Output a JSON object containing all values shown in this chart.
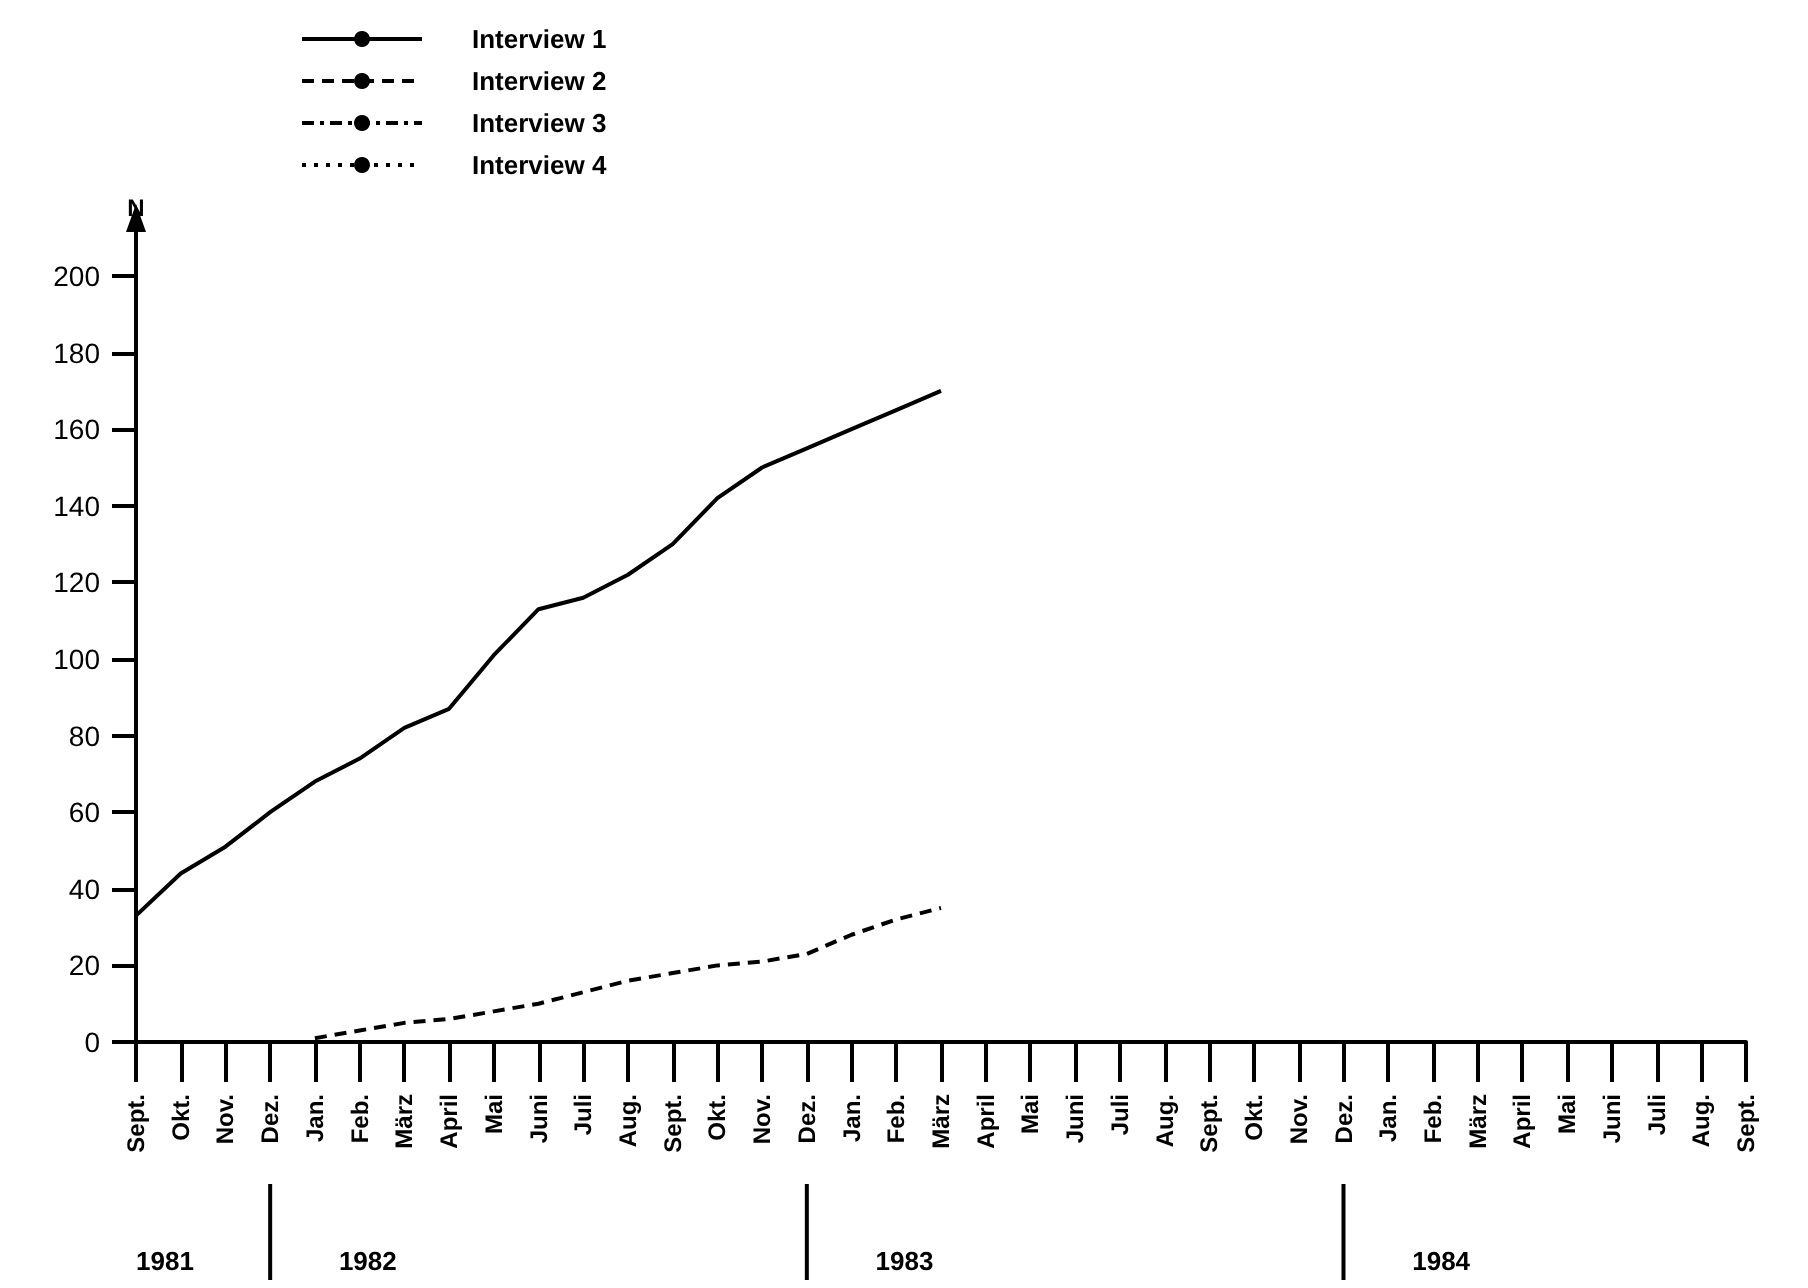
{
  "chart_data": {
    "type": "line",
    "ylabel": "N",
    "categories": [
      "Sept.",
      "Okt.",
      "Nov.",
      "Dez.",
      "Jan.",
      "Feb.",
      "März",
      "April",
      "Mai",
      "Juni",
      "Juli",
      "Aug.",
      "Sept.",
      "Okt.",
      "Nov.",
      "Dez.",
      "Jan.",
      "Feb.",
      "März",
      "April",
      "Mai",
      "Juni",
      "Juli",
      "Aug.",
      "Sept.",
      "Okt.",
      "Nov.",
      "Dez.",
      "Jan.",
      "Feb.",
      "März",
      "April",
      "Mai",
      "Juni",
      "Juli",
      "Aug.",
      "Sept."
    ],
    "series": [
      {
        "name": "Interview 1",
        "color": "#000000",
        "line_style": "solid",
        "values": [
          33,
          44,
          51,
          60,
          68,
          74,
          82,
          87,
          101,
          113,
          116,
          122,
          130,
          142,
          150,
          155,
          160,
          165,
          170,
          null,
          null,
          null,
          null,
          null,
          null,
          null,
          null,
          null,
          null,
          null,
          null,
          null,
          null,
          null,
          null,
          null,
          null
        ]
      },
      {
        "name": "Interview 2",
        "color": "#000000",
        "line_style": "dashed",
        "values": [
          null,
          null,
          null,
          null,
          1,
          3,
          5,
          6,
          8,
          10,
          13,
          16,
          18,
          20,
          21,
          23,
          28,
          32,
          35,
          null,
          null,
          null,
          null,
          null,
          null,
          null,
          null,
          null,
          null,
          null,
          null,
          null,
          null,
          null,
          null,
          null,
          null
        ]
      },
      {
        "name": "Interview 3",
        "color": "#000000",
        "line_style": "dashdot",
        "values": [
          null,
          null,
          null,
          null,
          null,
          null,
          null,
          null,
          null,
          null,
          null,
          null,
          null,
          null,
          null,
          null,
          null,
          null,
          null,
          null,
          null,
          null,
          null,
          null,
          null,
          null,
          null,
          null,
          null,
          null,
          null,
          null,
          null,
          null,
          null,
          null,
          null
        ]
      },
      {
        "name": "Interview 4",
        "color": "#000000",
        "line_style": "dotted",
        "values": [
          null,
          null,
          null,
          null,
          null,
          null,
          null,
          null,
          null,
          null,
          null,
          null,
          null,
          null,
          null,
          null,
          null,
          null,
          null,
          null,
          null,
          null,
          null,
          null,
          null,
          null,
          null,
          null,
          null,
          null,
          null,
          null,
          null,
          null,
          null,
          null,
          null
        ]
      }
    ],
    "ylim": [
      0,
      200
    ],
    "yticks": [
      0,
      20,
      40,
      60,
      80,
      100,
      120,
      140,
      160,
      180,
      200
    ],
    "grid": false,
    "legend": "top",
    "marker": "none",
    "annotations": [
      "1981",
      "1982",
      "1983",
      "1984"
    ]
  }
}
